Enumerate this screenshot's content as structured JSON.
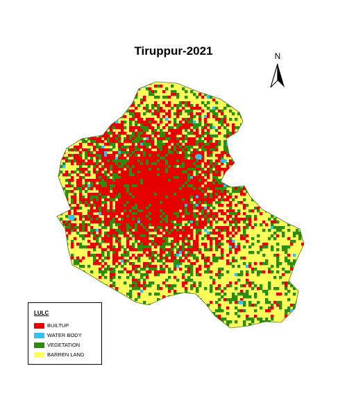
{
  "map": {
    "title": "Tiruppur-2021",
    "north_label": "N"
  },
  "legend": {
    "title": "LULC",
    "items": [
      {
        "label": "BUILTUP",
        "color": "#e60000"
      },
      {
        "label": "WATER BODY",
        "color": "#33c0f0"
      },
      {
        "label": "VEGETATION",
        "color": "#2e8b0e"
      },
      {
        "label": "BARREN LAND",
        "color": "#ffff5a"
      }
    ]
  },
  "colors": {
    "builtup": "#e60000",
    "water": "#33c0f0",
    "vegetation": "#2e8b0e",
    "barren": "#ffff5a"
  }
}
